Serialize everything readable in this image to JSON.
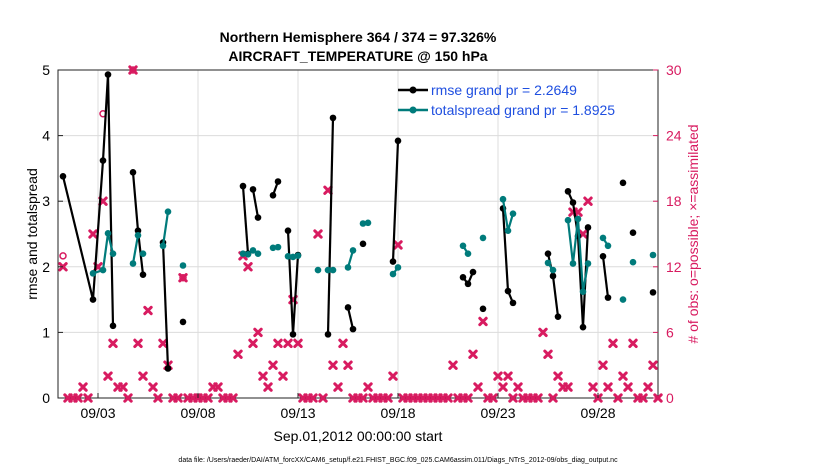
{
  "chart_data": {
    "type": "line",
    "title": "Northern Hemisphere 364 / 374 = 97.326%",
    "subtitle": "AIRCRAFT_TEMPERATURE @ 150 hPa",
    "xlabel": "Sep.01,2012 00:00:00 start",
    "ylabel": "rmse and totalspread",
    "y2label": "# of obs: o=possible; ×=assimilated",
    "footer": "data file: /Users/raeder/DAI/ATM_forcXX/CAM6_setup/f.e21.FHIST_BGC.f09_025.CAM6assim.011/Diags_NTrS_2012-09/obs_diag_output.nc",
    "xlim": [
      1.0,
      31.0
    ],
    "ylim": [
      0,
      5
    ],
    "y2lim": [
      0,
      30
    ],
    "xticks": [
      3,
      8,
      13,
      18,
      23,
      28
    ],
    "xticklabels": [
      "09/03",
      "09/08",
      "09/13",
      "09/18",
      "09/23",
      "09/28"
    ],
    "yticks": [
      0,
      1,
      2,
      3,
      4,
      5
    ],
    "y2ticks": [
      0,
      6,
      12,
      18,
      24,
      30
    ],
    "grid": true,
    "legend_position": "top-right",
    "colors": {
      "rmse": "#000000",
      "spread": "#007b7b",
      "obs": "#d81b60",
      "legend_text": "#1f4fe0"
    },
    "series": [
      {
        "name": "rmse grand pr = 2.2649",
        "key": "rmse",
        "points": [
          [
            1.25,
            3.38
          ],
          [
            2.75,
            1.5
          ],
          [
            3.25,
            3.62
          ],
          [
            3.5,
            4.93
          ],
          [
            3.75,
            1.1
          ],
          null,
          [
            4.75,
            3.44
          ],
          [
            5.0,
            2.55
          ],
          [
            5.25,
            1.88
          ],
          null,
          [
            6.25,
            2.37
          ],
          [
            6.5,
            0.45
          ],
          null,
          [
            7.25,
            1.16
          ],
          null,
          [
            10.25,
            3.23
          ],
          [
            10.5,
            2.2
          ],
          null,
          [
            10.75,
            3.18
          ],
          [
            11.0,
            2.75
          ],
          null,
          [
            11.75,
            3.09
          ],
          [
            12.0,
            3.3
          ],
          null,
          [
            12.5,
            2.55
          ],
          [
            12.75,
            0.97
          ],
          [
            13.0,
            2.18
          ],
          null,
          [
            14.5,
            0.97
          ],
          [
            14.75,
            4.27
          ],
          null,
          [
            15.5,
            1.38
          ],
          [
            15.75,
            1.05
          ],
          null,
          [
            16.25,
            2.35
          ],
          null,
          [
            17.75,
            2.08
          ],
          [
            18.0,
            3.92
          ],
          null,
          [
            21.25,
            1.84
          ],
          [
            21.5,
            1.74
          ],
          [
            21.75,
            1.92
          ],
          null,
          [
            22.25,
            1.36
          ],
          null,
          [
            23.25,
            2.89
          ],
          [
            23.5,
            1.63
          ],
          [
            23.75,
            1.45
          ],
          null,
          [
            25.5,
            2.2
          ],
          [
            25.75,
            1.86
          ],
          [
            26.0,
            1.24
          ],
          null,
          [
            26.5,
            3.15
          ],
          [
            26.75,
            2.98
          ],
          [
            27.0,
            2.47
          ],
          [
            27.25,
            1.08
          ],
          [
            27.5,
            2.6
          ],
          null,
          [
            28.25,
            2.16
          ],
          [
            28.5,
            1.53
          ],
          null,
          [
            29.25,
            3.28
          ],
          null,
          [
            29.75,
            2.52
          ],
          null,
          [
            30.75,
            1.61
          ]
        ]
      },
      {
        "name": "totalspread grand pr = 1.8925",
        "key": "spread",
        "points": [
          [
            2.75,
            1.9
          ],
          [
            3.25,
            1.95
          ],
          [
            3.5,
            2.51
          ],
          [
            3.75,
            2.2
          ],
          null,
          [
            4.75,
            2.05
          ],
          [
            5.0,
            2.48
          ],
          null,
          [
            5.25,
            2.2
          ],
          null,
          [
            6.25,
            2.32
          ],
          [
            6.5,
            2.84
          ],
          null,
          [
            7.25,
            2.02
          ],
          null,
          [
            10.25,
            2.2
          ],
          [
            10.5,
            2.19
          ],
          null,
          [
            10.75,
            2.25
          ],
          [
            11.0,
            2.2
          ],
          null,
          [
            11.75,
            2.29
          ],
          [
            12.0,
            2.3
          ],
          null,
          [
            12.5,
            2.16
          ],
          [
            12.75,
            2.15
          ],
          [
            13.0,
            2.17
          ],
          null,
          [
            14.0,
            1.95
          ],
          null,
          [
            14.5,
            1.95
          ],
          [
            14.75,
            1.95
          ],
          null,
          [
            15.5,
            1.99
          ],
          [
            15.75,
            2.25
          ],
          null,
          [
            16.25,
            2.66
          ],
          null,
          [
            16.5,
            2.67
          ],
          null,
          [
            17.75,
            1.89
          ],
          [
            18.0,
            1.99
          ],
          null,
          [
            21.25,
            2.32
          ],
          [
            21.5,
            2.2
          ],
          null,
          [
            22.25,
            2.44
          ],
          null,
          [
            23.25,
            3.03
          ],
          [
            23.5,
            2.55
          ],
          [
            23.75,
            2.81
          ],
          null,
          [
            25.5,
            2.06
          ],
          [
            25.75,
            1.95
          ],
          null,
          [
            26.5,
            2.71
          ],
          [
            26.75,
            2.05
          ],
          [
            27.0,
            2.73
          ],
          [
            27.25,
            1.62
          ],
          [
            27.5,
            2.05
          ],
          null,
          [
            28.25,
            2.44
          ],
          [
            28.5,
            2.32
          ],
          null,
          [
            29.25,
            1.5
          ],
          null,
          [
            29.75,
            2.07
          ],
          null,
          [
            30.75,
            2.18
          ]
        ]
      }
    ],
    "obs_possible": [
      [
        1.25,
        13
      ],
      [
        3.25,
        26
      ],
      [
        4.75,
        30
      ],
      [
        7.25,
        11
      ]
    ],
    "obs_assimilated": [
      [
        1.25,
        12
      ],
      [
        1.5,
        0
      ],
      [
        1.75,
        0
      ],
      [
        2.0,
        0
      ],
      [
        2.25,
        1
      ],
      [
        2.5,
        0
      ],
      [
        2.75,
        15
      ],
      [
        3.0,
        12
      ],
      [
        3.25,
        18
      ],
      [
        3.5,
        2
      ],
      [
        3.75,
        5
      ],
      [
        4.0,
        1
      ],
      [
        4.25,
        1
      ],
      [
        4.5,
        0
      ],
      [
        4.75,
        30
      ],
      [
        5.0,
        5
      ],
      [
        5.25,
        2
      ],
      [
        5.5,
        8
      ],
      [
        5.75,
        1
      ],
      [
        6.0,
        0
      ],
      [
        6.25,
        5
      ],
      [
        6.5,
        3
      ],
      [
        6.75,
        0
      ],
      [
        7.0,
        0
      ],
      [
        7.25,
        11
      ],
      [
        7.5,
        0
      ],
      [
        7.75,
        0
      ],
      [
        8.0,
        0
      ],
      [
        8.25,
        0
      ],
      [
        8.5,
        0
      ],
      [
        8.75,
        1
      ],
      [
        9.0,
        1
      ],
      [
        9.25,
        0
      ],
      [
        9.5,
        0
      ],
      [
        9.75,
        0
      ],
      [
        10.0,
        4
      ],
      [
        10.25,
        13
      ],
      [
        10.5,
        12
      ],
      [
        10.75,
        5
      ],
      [
        11.0,
        6
      ],
      [
        11.25,
        2
      ],
      [
        11.5,
        1
      ],
      [
        11.75,
        3
      ],
      [
        12.0,
        5
      ],
      [
        12.25,
        2
      ],
      [
        12.5,
        5
      ],
      [
        12.75,
        9
      ],
      [
        13.0,
        5
      ],
      [
        13.25,
        0
      ],
      [
        13.5,
        0
      ],
      [
        13.75,
        0
      ],
      [
        14.0,
        15
      ],
      [
        14.25,
        0
      ],
      [
        14.5,
        19
      ],
      [
        14.75,
        3
      ],
      [
        15.0,
        1
      ],
      [
        15.25,
        5
      ],
      [
        15.5,
        3
      ],
      [
        15.75,
        0
      ],
      [
        16.0,
        0
      ],
      [
        16.25,
        0
      ],
      [
        16.5,
        1
      ],
      [
        16.75,
        0
      ],
      [
        17.0,
        0
      ],
      [
        17.25,
        0
      ],
      [
        17.5,
        0
      ],
      [
        17.75,
        2
      ],
      [
        18.0,
        14
      ],
      [
        18.25,
        0
      ],
      [
        18.5,
        0
      ],
      [
        18.75,
        0
      ],
      [
        19.0,
        0
      ],
      [
        19.25,
        0
      ],
      [
        19.5,
        0
      ],
      [
        19.75,
        0
      ],
      [
        20.0,
        0
      ],
      [
        20.25,
        0
      ],
      [
        20.5,
        0
      ],
      [
        20.75,
        3
      ],
      [
        21.0,
        0
      ],
      [
        21.25,
        0
      ],
      [
        21.5,
        0
      ],
      [
        21.75,
        4
      ],
      [
        22.0,
        1
      ],
      [
        22.25,
        7
      ],
      [
        22.5,
        0
      ],
      [
        22.75,
        0
      ],
      [
        23.0,
        2
      ],
      [
        23.25,
        1
      ],
      [
        23.5,
        2
      ],
      [
        23.75,
        0
      ],
      [
        24.0,
        1
      ],
      [
        24.25,
        0
      ],
      [
        24.5,
        0
      ],
      [
        24.75,
        0
      ],
      [
        25.0,
        0
      ],
      [
        25.25,
        6
      ],
      [
        25.5,
        4
      ],
      [
        25.75,
        0
      ],
      [
        26.0,
        2
      ],
      [
        26.25,
        1
      ],
      [
        26.5,
        1
      ],
      [
        26.75,
        17
      ],
      [
        27.0,
        17
      ],
      [
        27.25,
        15
      ],
      [
        27.5,
        18
      ],
      [
        27.75,
        1
      ],
      [
        28.0,
        0
      ],
      [
        28.25,
        3
      ],
      [
        28.5,
        1
      ],
      [
        28.75,
        5
      ],
      [
        29.0,
        0
      ],
      [
        29.25,
        2
      ],
      [
        29.5,
        1
      ],
      [
        29.75,
        5
      ],
      [
        30.0,
        0
      ],
      [
        30.25,
        0
      ],
      [
        30.5,
        1
      ],
      [
        30.75,
        3
      ],
      [
        31.0,
        0
      ]
    ]
  }
}
